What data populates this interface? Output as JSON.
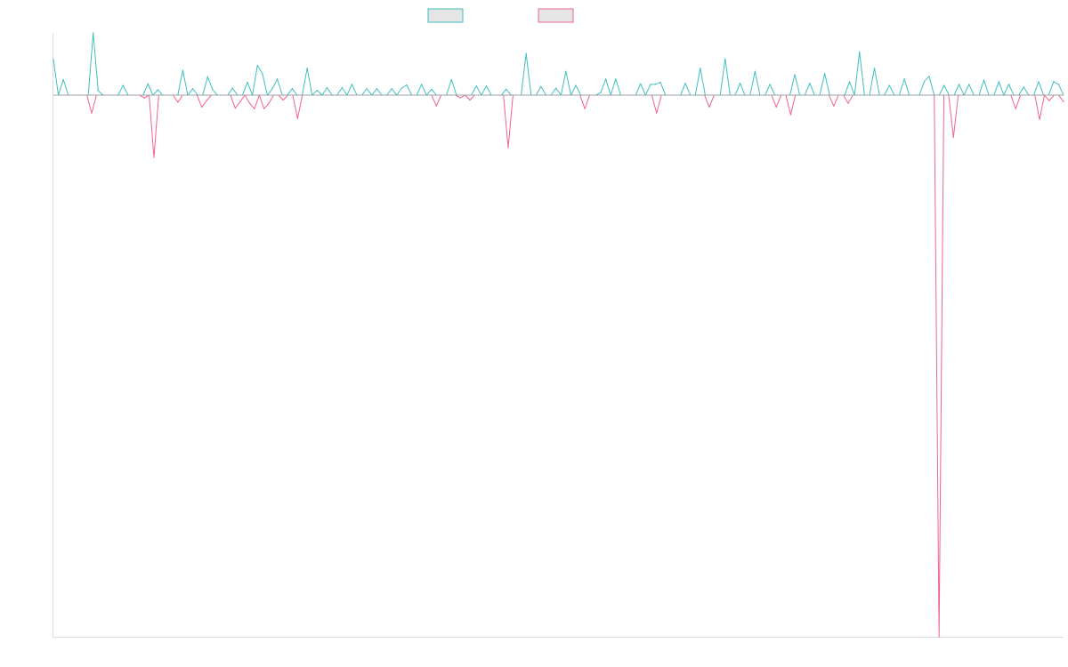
{
  "chart_data": {
    "type": "line",
    "title": "",
    "xlabel": "",
    "ylabel": "",
    "grid": false,
    "legend_position": "top-center",
    "ylim": [
      -1.0,
      0.115
    ],
    "baseline": 0,
    "series": [
      {
        "color": "#3fbfbf",
        "fill": "#e5e5e5",
        "values": [
          0.066,
          0,
          0.029,
          0,
          0,
          0,
          0,
          0,
          0.115,
          0.008,
          0,
          0,
          0,
          0,
          0.018,
          0,
          0,
          0,
          0,
          0.021,
          0,
          0.01,
          0,
          0,
          0,
          0,
          0.046,
          0,
          0.012,
          0,
          0,
          0.034,
          0.01,
          0,
          0,
          0,
          0.013,
          0,
          0,
          0.024,
          0,
          0.055,
          0.04,
          0,
          0.012,
          0.03,
          0,
          0,
          0.012,
          0,
          0,
          0.05,
          0,
          0.009,
          0,
          0.014,
          0,
          0,
          0.014,
          0,
          0.02,
          0,
          0,
          0.012,
          0,
          0.012,
          0,
          0,
          0.012,
          0,
          0.013,
          0.019,
          0,
          0,
          0.02,
          0,
          0.011,
          0,
          0,
          0,
          0.029,
          0,
          0,
          0,
          0,
          0.017,
          0,
          0.017,
          0,
          0,
          0,
          0.011,
          0,
          0,
          0,
          0.077,
          0,
          0,
          0.016,
          0,
          0,
          0.013,
          0,
          0.044,
          0,
          0.018,
          0,
          0,
          0,
          0,
          0.005,
          0.03,
          0,
          0.03,
          0,
          0,
          0,
          0,
          0.021,
          0,
          0.02,
          0.02,
          0.024,
          0,
          0,
          0,
          0,
          0.022,
          0,
          0,
          0.05,
          0,
          0,
          0,
          0,
          0.067,
          0,
          0,
          0.022,
          0,
          0,
          0.044,
          0,
          0,
          0.02,
          0,
          0,
          0,
          0,
          0.038,
          0,
          0,
          0.022,
          0,
          0,
          0.04,
          0,
          0,
          0,
          0,
          0.025,
          0,
          0.08,
          0,
          0,
          0.05,
          0,
          0,
          0.018,
          0,
          0,
          0.03,
          0,
          0,
          0,
          0.025,
          0.035,
          0,
          0,
          0.018,
          0,
          0,
          0.02,
          0,
          0.02,
          0,
          0,
          0.028,
          0,
          0,
          0.025,
          0,
          0.02,
          0,
          0,
          0.015,
          0,
          0,
          0.025,
          0,
          0,
          0.025,
          0.02,
          0
        ]
      },
      {
        "color": "#f0638b",
        "fill": "#e5e5e5",
        "values": [
          0,
          0,
          0,
          0,
          0,
          0,
          0,
          0,
          -0.033,
          0,
          0,
          0,
          0,
          0,
          0,
          0,
          0,
          0,
          0,
          -0.005,
          0,
          -0.115,
          0,
          0,
          0,
          0,
          -0.013,
          0,
          0,
          0,
          0,
          -0.022,
          -0.01,
          0,
          0,
          0,
          0,
          0,
          -0.024,
          -0.012,
          0,
          -0.015,
          -0.025,
          0,
          -0.025,
          -0.015,
          0,
          0,
          -0.009,
          0,
          0,
          -0.043,
          0,
          0,
          0,
          0,
          0,
          0,
          0,
          0,
          0,
          0,
          0,
          0,
          0,
          0,
          0,
          0,
          0,
          0,
          0,
          0,
          0,
          0,
          0,
          0,
          0,
          0,
          0,
          0,
          -0.02,
          0,
          0,
          0,
          0,
          -0.005,
          0,
          -0.009,
          0,
          0,
          0,
          0,
          0,
          0,
          0,
          -0.097,
          0,
          0,
          0,
          0,
          0,
          0,
          0,
          0,
          0,
          0,
          0,
          0,
          0,
          0,
          0,
          -0.025,
          0,
          0,
          0,
          0,
          0,
          0,
          0,
          0,
          0,
          0,
          0,
          0,
          0,
          0,
          -0.033,
          0,
          0,
          0,
          0,
          0,
          0,
          0,
          0,
          0,
          0,
          -0.022,
          0,
          0,
          0,
          0,
          0,
          0,
          0,
          0,
          0,
          0,
          0,
          0,
          0,
          -0.022,
          0,
          0,
          -0.036,
          0,
          0,
          0,
          0,
          0,
          0,
          0,
          0,
          -0.02,
          0,
          0,
          -0.015,
          0,
          0,
          0,
          0,
          0,
          0,
          0,
          0,
          0,
          0,
          0,
          0,
          0,
          0,
          0,
          0,
          0,
          0,
          -1.0,
          0,
          0,
          -0.078,
          0,
          0,
          0,
          0,
          0,
          0,
          0,
          0,
          0,
          0,
          0,
          0,
          -0.025,
          0,
          0,
          0,
          0,
          -0.045,
          0,
          -0.01,
          0,
          0,
          -0.012
        ]
      }
    ]
  }
}
